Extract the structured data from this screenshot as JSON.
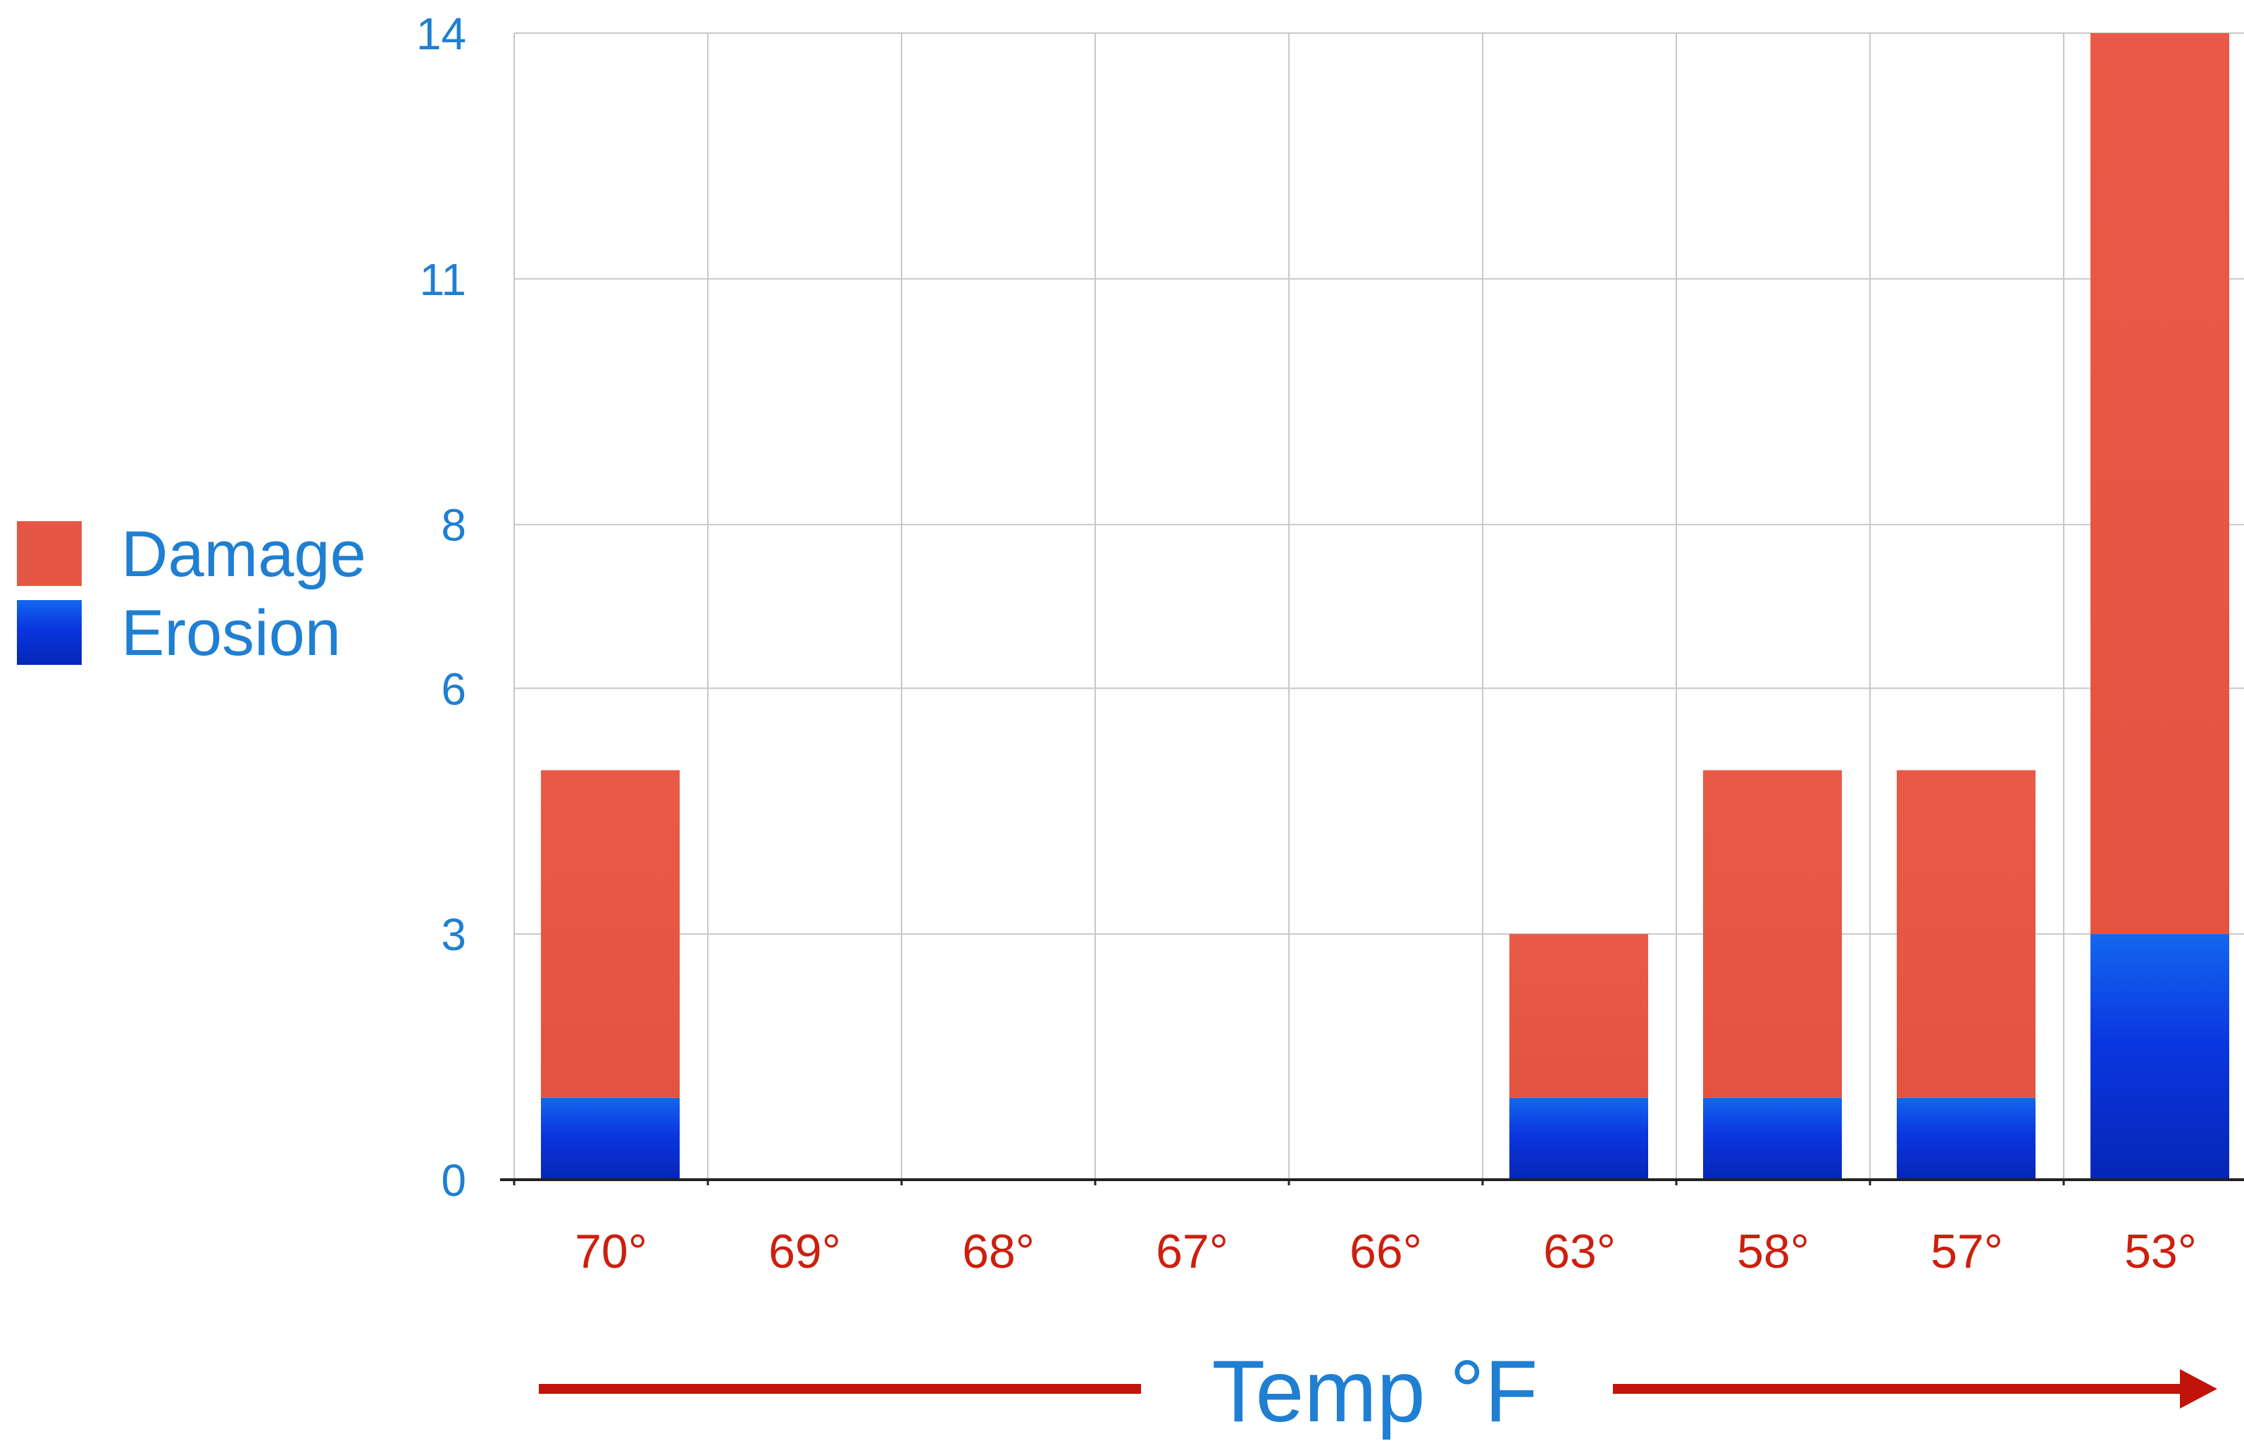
{
  "chart_data": {
    "type": "bar",
    "stacked": true,
    "categories": [
      "70°",
      "69°",
      "68°",
      "67°",
      "66°",
      "63°",
      "58°",
      "57°",
      "53°"
    ],
    "series": [
      {
        "name": "Erosion",
        "values": [
          1,
          0,
          0,
          0,
          0,
          1,
          1,
          1,
          3
        ]
      },
      {
        "name": "Damage",
        "values": [
          4,
          0,
          0,
          0,
          0,
          2,
          4,
          4,
          11
        ]
      }
    ],
    "y_ticks": [
      {
        "value": 0,
        "label": "0"
      },
      {
        "value": 3,
        "label": "3"
      },
      {
        "value": 6,
        "label": "6"
      },
      {
        "value": 8,
        "label": "8"
      },
      {
        "value": 11,
        "label": "11"
      },
      {
        "value": 14,
        "label": "14"
      }
    ],
    "title": "",
    "xlabel": "Temp °F",
    "ylabel": "",
    "ylim": [
      0,
      14
    ],
    "grid": true,
    "legend": {
      "placement": "left",
      "order": [
        "Damage",
        "Erosion"
      ]
    },
    "colors": {
      "Damage": "#e55744",
      "Erosion": "#0a3ae0",
      "tick_y": "#1f7fd2",
      "tick_x": "#cc1f0e",
      "axis_title": "#1f7fd2",
      "arrow": "#c0140a",
      "grid": "#c8c8c8"
    }
  }
}
